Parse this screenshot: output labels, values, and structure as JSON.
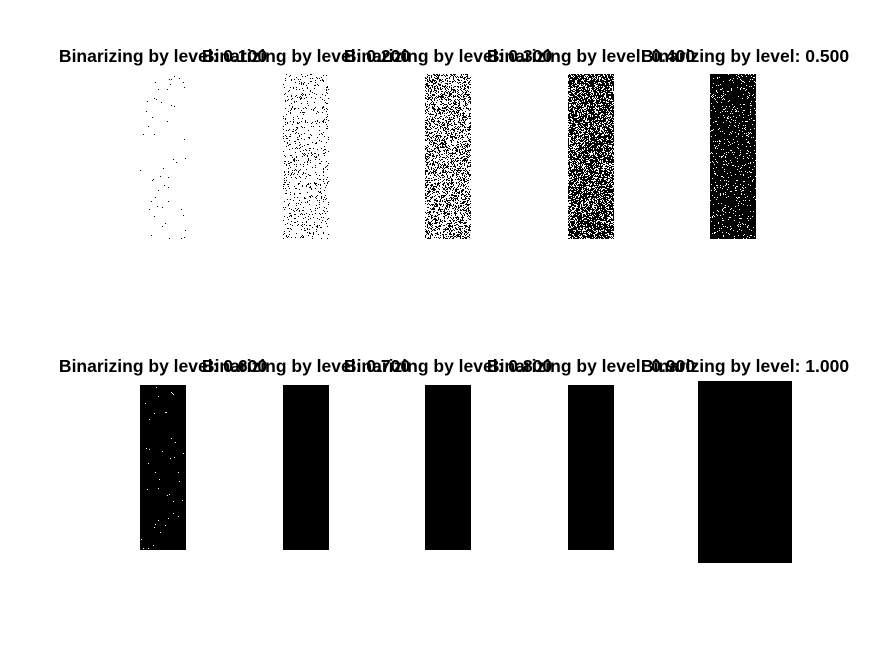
{
  "figure": {
    "rows": [
      {
        "panels": [
          {
            "title": "Binarizing by level: 0.100",
            "level": 0.1
          },
          {
            "title": "Binarizing by level: 0.200",
            "level": 0.2
          },
          {
            "title": "Binarizing by level: 0.300",
            "level": 0.3
          },
          {
            "title": "Binarizing by level: 0.400",
            "level": 0.4
          },
          {
            "title": "Binarizing by level: 0.500",
            "level": 0.5
          }
        ]
      },
      {
        "panels": [
          {
            "title": "Binarizing by level: 0.600",
            "level": 0.6
          },
          {
            "title": "Binarizing by level: 0.700",
            "level": 0.7
          },
          {
            "title": "Binarizing by level: 0.800",
            "level": 0.8
          },
          {
            "title": "Binarizing by level: 0.900",
            "level": 0.9
          },
          {
            "title": "Binarizing by level: 1.000",
            "level": 1.0
          }
        ]
      }
    ]
  }
}
